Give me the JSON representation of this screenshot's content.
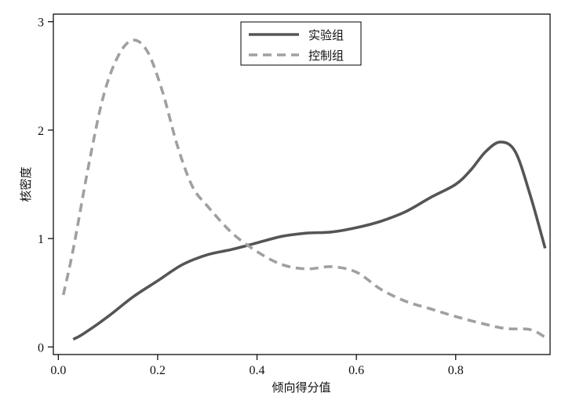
{
  "chart_data": {
    "type": "line",
    "title": "",
    "xlabel": "倾向得分值",
    "ylabel": "核密度",
    "xlim": [
      -0.01,
      0.99
    ],
    "ylim": [
      -0.07,
      3.07
    ],
    "xticks": [
      0.0,
      0.2,
      0.4,
      0.6,
      0.8
    ],
    "xtick_labels": [
      "0.0",
      "0.2",
      "0.4",
      "0.6",
      "0.8"
    ],
    "yticks": [
      0,
      1,
      2,
      3
    ],
    "ytick_labels": [
      "0",
      "1",
      "2",
      "3"
    ],
    "grid": false,
    "legend_position": "top-center",
    "series": [
      {
        "name": "实验组",
        "color": "#555555",
        "dash": "solid",
        "x": [
          0.03,
          0.05,
          0.1,
          0.15,
          0.2,
          0.25,
          0.3,
          0.35,
          0.4,
          0.45,
          0.5,
          0.55,
          0.6,
          0.65,
          0.7,
          0.75,
          0.8,
          0.83,
          0.86,
          0.89,
          0.92,
          0.95,
          0.98
        ],
        "y": [
          0.07,
          0.12,
          0.28,
          0.46,
          0.61,
          0.76,
          0.85,
          0.9,
          0.96,
          1.02,
          1.05,
          1.06,
          1.1,
          1.16,
          1.25,
          1.38,
          1.5,
          1.63,
          1.8,
          1.89,
          1.8,
          1.4,
          0.91
        ]
      },
      {
        "name": "控制组",
        "color": "#a0a0a0",
        "dash": "dashed",
        "x": [
          0.01,
          0.03,
          0.06,
          0.09,
          0.12,
          0.15,
          0.18,
          0.21,
          0.24,
          0.27,
          0.3,
          0.35,
          0.4,
          0.45,
          0.5,
          0.55,
          0.6,
          0.65,
          0.7,
          0.75,
          0.8,
          0.85,
          0.9,
          0.95,
          0.98
        ],
        "y": [
          0.48,
          0.9,
          1.65,
          2.3,
          2.68,
          2.83,
          2.72,
          2.35,
          1.85,
          1.48,
          1.3,
          1.05,
          0.88,
          0.76,
          0.72,
          0.74,
          0.69,
          0.53,
          0.42,
          0.35,
          0.28,
          0.22,
          0.17,
          0.16,
          0.09
        ]
      }
    ]
  }
}
